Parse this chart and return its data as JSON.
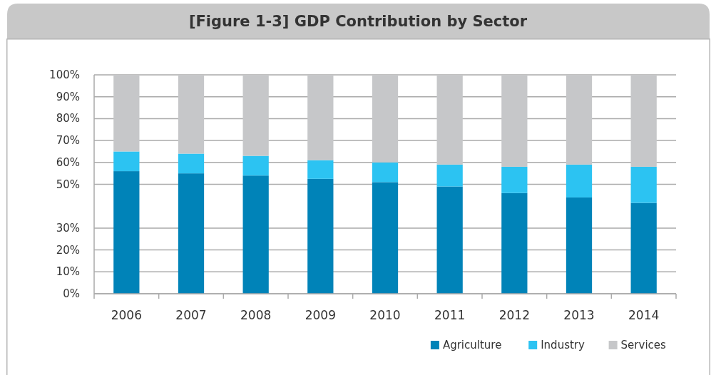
{
  "chart_data": {
    "type": "bar",
    "title": "[Figure 1-3] GDP Contribution by Sector",
    "stacked": true,
    "categories": [
      "2006",
      "2007",
      "2008",
      "2009",
      "2010",
      "2011",
      "2012",
      "2013",
      "2014"
    ],
    "series": [
      {
        "name": "Agriculture",
        "color": "#0083b8",
        "values": [
          56,
          55,
          54,
          52.5,
          51,
          49,
          46,
          44,
          41.5
        ]
      },
      {
        "name": "Industry",
        "color": "#2cc3f2",
        "values": [
          9,
          9,
          9,
          8.5,
          9,
          10,
          12,
          15,
          16.5
        ]
      },
      {
        "name": "Services",
        "color": "#c6c7c9",
        "values": [
          35,
          36,
          37,
          39,
          40,
          41,
          42,
          41,
          42
        ]
      }
    ],
    "ylim": [
      0,
      100
    ],
    "yticks": [
      {
        "value": 0,
        "label": "0%"
      },
      {
        "value": 10,
        "label": "10%"
      },
      {
        "value": 20,
        "label": "20%"
      },
      {
        "value": 30,
        "label": "30%"
      },
      {
        "value": 50,
        "label": "50%"
      },
      {
        "value": 60,
        "label": "60%"
      },
      {
        "value": 70,
        "label": "70%"
      },
      {
        "value": 80,
        "label": "80%"
      },
      {
        "value": 90,
        "label": "90%"
      },
      {
        "value": 100,
        "label": "100%"
      }
    ],
    "grid": "y",
    "legend": "bottom right"
  }
}
